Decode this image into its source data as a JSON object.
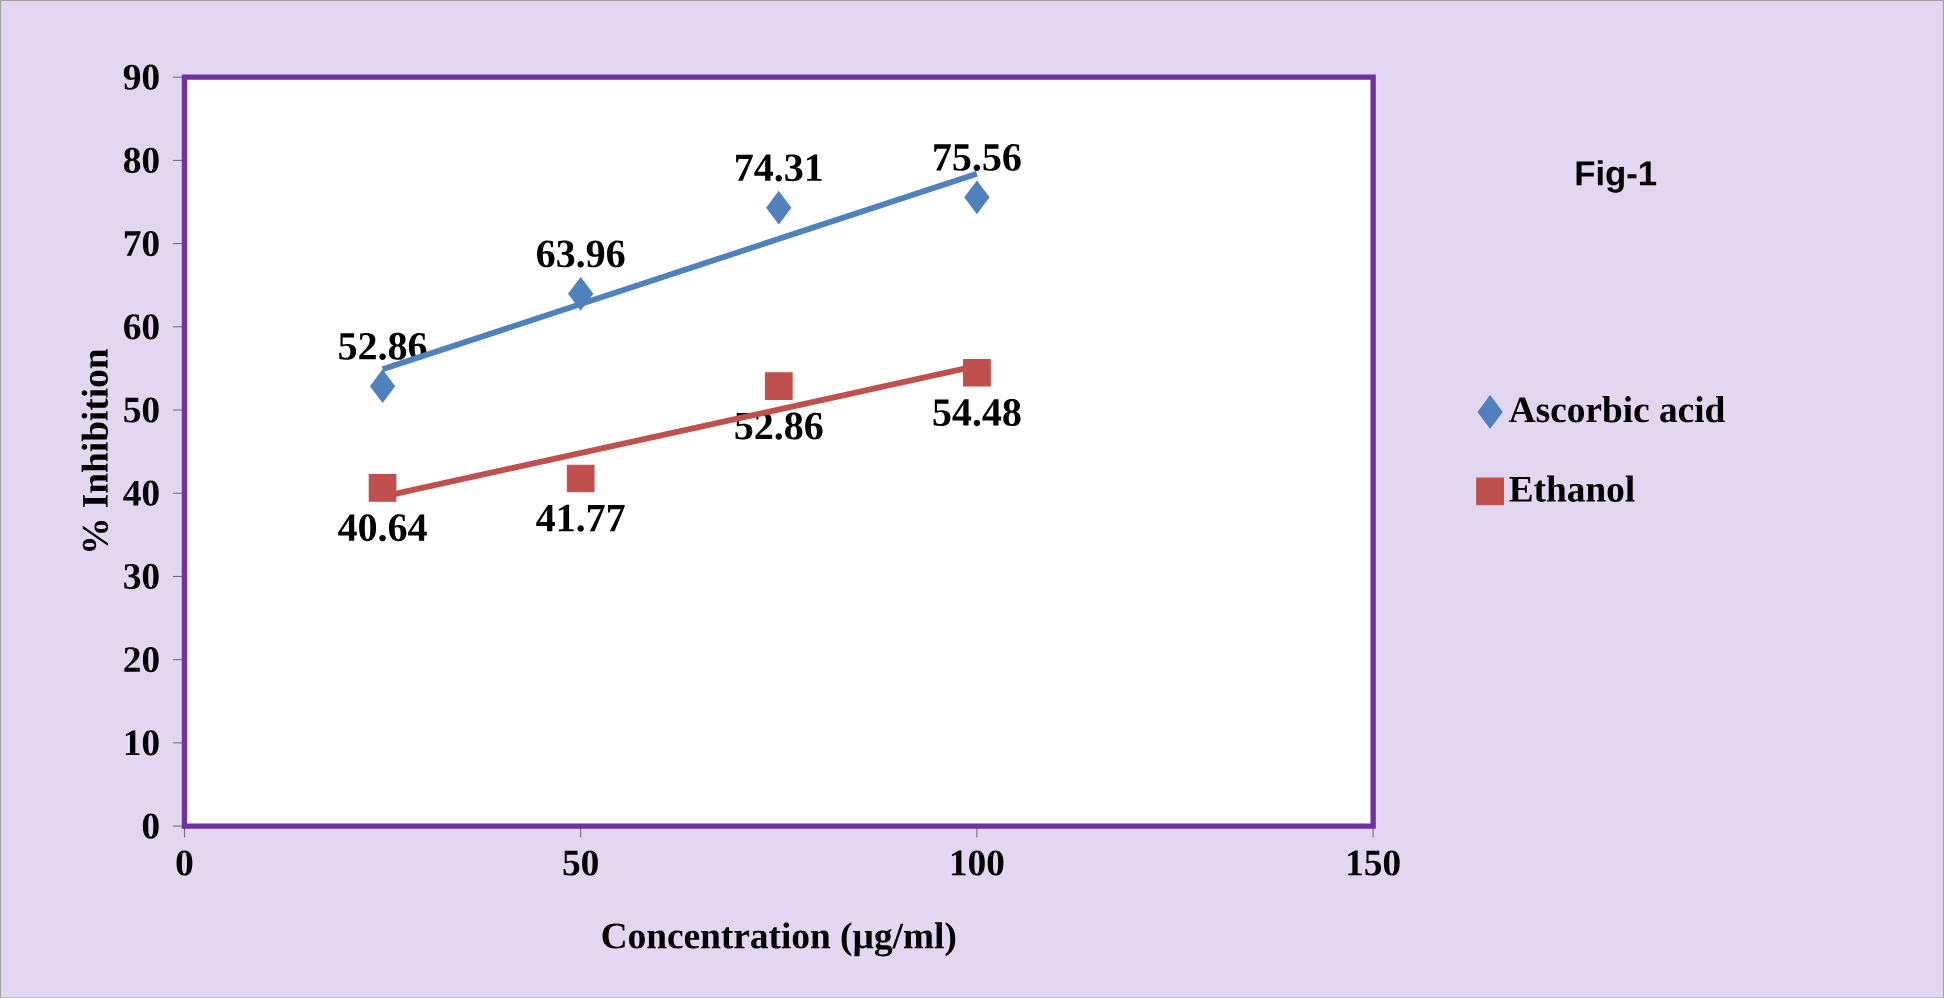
{
  "chart_data": {
    "type": "scatter",
    "xlabel": "Concentration (µg/ml)",
    "ylabel": "% Inhibition",
    "annotations": [
      "Fig-1"
    ],
    "xlim": [
      0,
      150
    ],
    "xticks": [
      0,
      50,
      100,
      150
    ],
    "ylim": [
      0,
      90
    ],
    "yticks": [
      0,
      10,
      20,
      30,
      40,
      50,
      60,
      70,
      80,
      90
    ],
    "grid": false,
    "legend": "right",
    "series": [
      {
        "name": "Ascorbic acid",
        "marker": "diamond",
        "color": "#4f81bd",
        "x": [
          25,
          50,
          75,
          100
        ],
        "values": [
          52.86,
          63.96,
          74.31,
          75.56
        ],
        "value_labels": [
          "52.86",
          "63.96",
          "74.31",
          "75.56"
        ]
      },
      {
        "name": "Ethanol",
        "marker": "square",
        "color": "#c0504d",
        "x": [
          25,
          50,
          75,
          100
        ],
        "values": [
          40.64,
          41.77,
          52.86,
          54.48
        ],
        "value_labels": [
          "40.64",
          "41.77",
          "52.86",
          "54.48"
        ]
      },
      {
        "type": "line",
        "marker": "none",
        "color": "#4f81bd",
        "x": [
          25,
          100
        ],
        "values": [
          54.9,
          78.4
        ]
      },
      {
        "type": "line",
        "marker": "none",
        "color": "#c0504d",
        "x": [
          25,
          100
        ],
        "values": [
          39.6,
          55.3
        ]
      }
    ]
  }
}
